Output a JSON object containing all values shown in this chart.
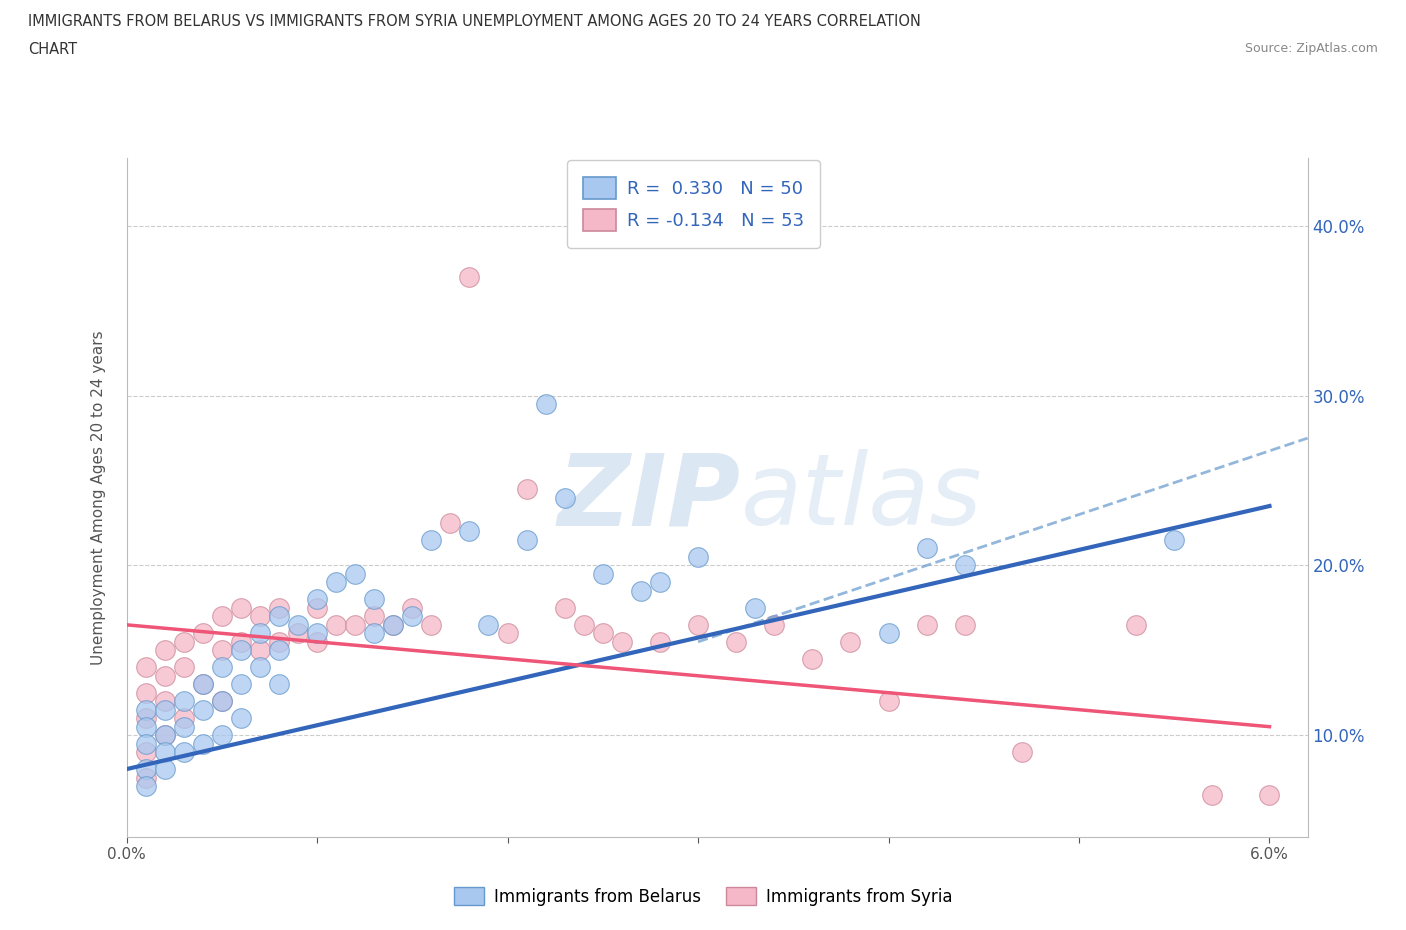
{
  "title_line1": "IMMIGRANTS FROM BELARUS VS IMMIGRANTS FROM SYRIA UNEMPLOYMENT AMONG AGES 20 TO 24 YEARS CORRELATION",
  "title_line2": "CHART",
  "source_text": "Source: ZipAtlas.com",
  "watermark_zip": "ZIP",
  "watermark_atlas": "atlas",
  "ylabel": "Unemployment Among Ages 20 to 24 years",
  "xlim": [
    0.0,
    0.062
  ],
  "ylim": [
    0.04,
    0.44
  ],
  "xtick_positions": [
    0.0,
    0.01,
    0.02,
    0.03,
    0.04,
    0.05,
    0.06
  ],
  "xtick_labels": [
    "0.0%",
    "",
    "",
    "",
    "",
    "",
    "6.0%"
  ],
  "ytick_positions": [
    0.1,
    0.2,
    0.3,
    0.4
  ],
  "ytick_labels": [
    "10.0%",
    "20.0%",
    "30.0%",
    "40.0%"
  ],
  "color_belarus_fill": "#a8c8f0",
  "color_belarus_edge": "#6699cc",
  "color_syria_fill": "#f5b8c8",
  "color_syria_edge": "#cc8899",
  "color_trend_belarus": "#3366bb",
  "color_trend_syria": "#ee5577",
  "color_trend_dashed": "#6699cc",
  "background_color": "#ffffff",
  "grid_color": "#cccccc",
  "watermark_color": "#99bbdd",
  "legend_text_color": "#3366bb",
  "title_color": "#333333",
  "source_color": "#888888",
  "ytick_color": "#3366bb",
  "xtick_color": "#555555",
  "belarus_x": [
    0.001,
    0.001,
    0.001,
    0.001,
    0.001,
    0.002,
    0.002,
    0.002,
    0.002,
    0.003,
    0.003,
    0.003,
    0.004,
    0.004,
    0.004,
    0.005,
    0.005,
    0.005,
    0.006,
    0.006,
    0.006,
    0.007,
    0.007,
    0.008,
    0.008,
    0.008,
    0.009,
    0.01,
    0.01,
    0.011,
    0.012,
    0.013,
    0.013,
    0.014,
    0.015,
    0.016,
    0.018,
    0.019,
    0.021,
    0.022,
    0.023,
    0.025,
    0.027,
    0.028,
    0.03,
    0.033,
    0.04,
    0.042,
    0.044,
    0.055
  ],
  "belarus_y": [
    0.115,
    0.105,
    0.095,
    0.08,
    0.07,
    0.115,
    0.1,
    0.09,
    0.08,
    0.12,
    0.105,
    0.09,
    0.13,
    0.115,
    0.095,
    0.14,
    0.12,
    0.1,
    0.15,
    0.13,
    0.11,
    0.16,
    0.14,
    0.17,
    0.15,
    0.13,
    0.165,
    0.18,
    0.16,
    0.19,
    0.195,
    0.18,
    0.16,
    0.165,
    0.17,
    0.215,
    0.22,
    0.165,
    0.215,
    0.295,
    0.24,
    0.195,
    0.185,
    0.19,
    0.205,
    0.175,
    0.16,
    0.21,
    0.2,
    0.215
  ],
  "syria_x": [
    0.001,
    0.001,
    0.001,
    0.001,
    0.001,
    0.002,
    0.002,
    0.002,
    0.002,
    0.003,
    0.003,
    0.003,
    0.004,
    0.004,
    0.005,
    0.005,
    0.005,
    0.006,
    0.006,
    0.007,
    0.007,
    0.008,
    0.008,
    0.009,
    0.01,
    0.01,
    0.011,
    0.012,
    0.013,
    0.014,
    0.015,
    0.016,
    0.017,
    0.018,
    0.02,
    0.021,
    0.023,
    0.024,
    0.025,
    0.026,
    0.028,
    0.03,
    0.032,
    0.034,
    0.036,
    0.038,
    0.04,
    0.042,
    0.044,
    0.047,
    0.053,
    0.057,
    0.06
  ],
  "syria_y": [
    0.14,
    0.125,
    0.11,
    0.09,
    0.075,
    0.15,
    0.135,
    0.12,
    0.1,
    0.155,
    0.14,
    0.11,
    0.16,
    0.13,
    0.17,
    0.15,
    0.12,
    0.175,
    0.155,
    0.17,
    0.15,
    0.175,
    0.155,
    0.16,
    0.175,
    0.155,
    0.165,
    0.165,
    0.17,
    0.165,
    0.175,
    0.165,
    0.225,
    0.37,
    0.16,
    0.245,
    0.175,
    0.165,
    0.16,
    0.155,
    0.155,
    0.165,
    0.155,
    0.165,
    0.145,
    0.155,
    0.12,
    0.165,
    0.165,
    0.09,
    0.165,
    0.065,
    0.065
  ],
  "trend_b_x0": 0.0,
  "trend_b_y0": 0.08,
  "trend_b_x1": 0.06,
  "trend_b_y1": 0.235,
  "trend_s_x0": 0.0,
  "trend_s_y0": 0.165,
  "trend_s_x1": 0.06,
  "trend_s_y1": 0.105,
  "trend_dash_x0": 0.03,
  "trend_dash_y0": 0.155,
  "trend_dash_x1": 0.062,
  "trend_dash_y1": 0.275
}
